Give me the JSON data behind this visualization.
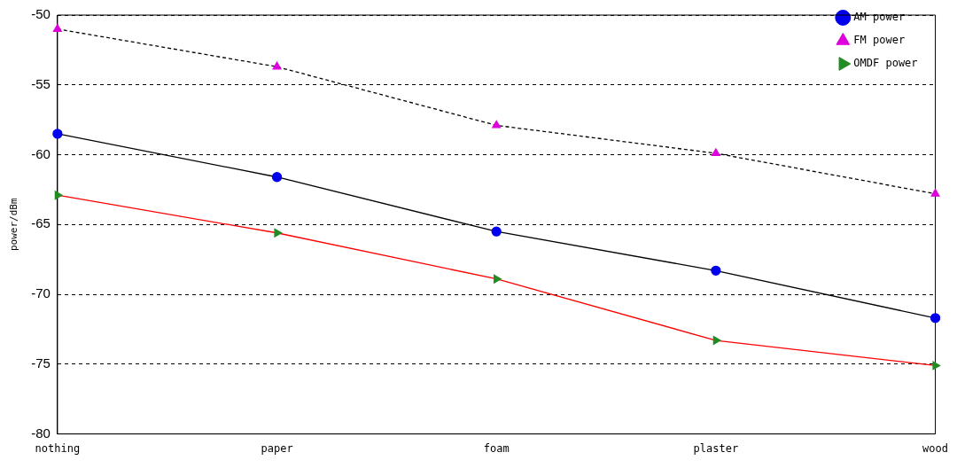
{
  "chart_data": {
    "type": "line",
    "ylabel": "power/dBm",
    "categories": [
      "nothing",
      "paper",
      "foam",
      "plaster",
      "wood"
    ],
    "series": [
      {
        "name": "AM power",
        "color": "#000000",
        "colors": [
          "#0000ee",
          "#0000ee",
          "#0000ee",
          "#0000ee",
          "#0000ee"
        ],
        "marker": "circle",
        "line_style": "solid",
        "values": [
          -58.5,
          -61.6,
          -65.5,
          -68.3,
          -71.7
        ]
      },
      {
        "name": "FM power",
        "color": "#000000",
        "colors": [
          "#dd00dd",
          "#dd00dd",
          "#dd00dd",
          "#dd00dd",
          "#dd00dd"
        ],
        "marker": "triangle",
        "line_style": "dashed",
        "values": [
          -51.0,
          -53.7,
          -57.9,
          -59.9,
          -62.8
        ]
      },
      {
        "name": "OMDF power",
        "color": "#ff0000",
        "colors": [
          "#228b22",
          "#228b22",
          "#228b22",
          "#228b22",
          "#228b22"
        ],
        "marker": "triangle-right",
        "line_style": "solid",
        "values": [
          -62.9,
          -65.6,
          -68.9,
          -73.3,
          -75.1
        ]
      }
    ],
    "ylim": [
      -80,
      -50
    ],
    "yticks": [
      -80,
      -75,
      -70,
      -65,
      -60,
      -55,
      -50
    ],
    "grid": "y",
    "legend": "top right"
  }
}
